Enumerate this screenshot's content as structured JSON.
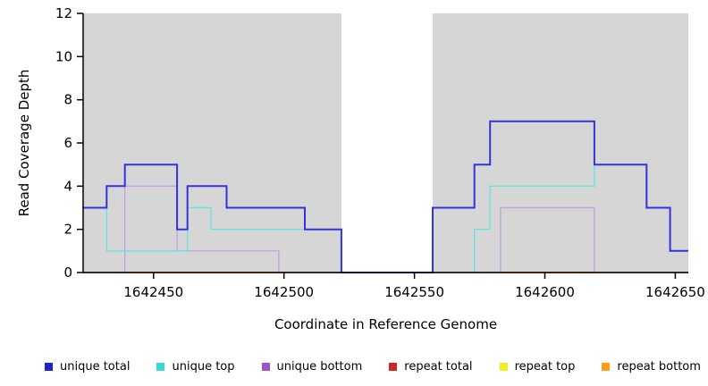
{
  "chart_data": {
    "type": "line",
    "step": true,
    "title": "",
    "xlabel": "Coordinate in Reference Genome",
    "ylabel": "Read Coverage Depth",
    "xlim": [
      1642423,
      1642655
    ],
    "ylim": [
      0,
      12
    ],
    "x_ticks": [
      1642450,
      1642500,
      1642550,
      1642600,
      1642650
    ],
    "y_ticks": [
      0,
      2,
      4,
      6,
      8,
      10,
      12
    ],
    "grid": false,
    "plot_bg": "#d6d6d6",
    "gap_region": {
      "from": 1642522,
      "to": 1642557,
      "color": "#ffffff"
    },
    "legend_position": "bottom",
    "series": [
      {
        "name": "repeat top",
        "color": "#f0ee20",
        "width": 1.4,
        "points": [
          [
            1642423,
            0
          ],
          [
            1642655,
            0
          ]
        ]
      },
      {
        "name": "repeat total",
        "color": "#cd2626",
        "width": 1.4,
        "points": [
          [
            1642423,
            0
          ],
          [
            1642655,
            0
          ]
        ]
      },
      {
        "name": "repeat bottom",
        "color": "#ff9e1b",
        "width": 1.5,
        "points": [
          [
            1642423,
            0
          ],
          [
            1642619,
            0
          ]
        ]
      },
      {
        "name": "unique bottom",
        "color": "#c5a3de",
        "width": 1.4,
        "points": [
          [
            1642423,
            0
          ],
          [
            1642439,
            4
          ],
          [
            1642459,
            1
          ],
          [
            1642498,
            0
          ],
          [
            1642583,
            3
          ],
          [
            1642619,
            0
          ],
          [
            1642655,
            0
          ]
        ]
      },
      {
        "name": "unique top",
        "color": "#6fe0e0",
        "width": 1.4,
        "points": [
          [
            1642423,
            3
          ],
          [
            1642432,
            1
          ],
          [
            1642463,
            3
          ],
          [
            1642472,
            2
          ],
          [
            1642522,
            0
          ],
          [
            1642557,
            0
          ],
          [
            1642573,
            2
          ],
          [
            1642579,
            4
          ],
          [
            1642619,
            5
          ],
          [
            1642639,
            3
          ],
          [
            1642648,
            1
          ],
          [
            1642655,
            1
          ]
        ]
      },
      {
        "name": "unique total",
        "color": "#3333dd",
        "width": 2,
        "points": [
          [
            1642423,
            3
          ],
          [
            1642432,
            4
          ],
          [
            1642439,
            5
          ],
          [
            1642459,
            2
          ],
          [
            1642463,
            4
          ],
          [
            1642478,
            3
          ],
          [
            1642508,
            2
          ],
          [
            1642522,
            0
          ],
          [
            1642557,
            3
          ],
          [
            1642573,
            5
          ],
          [
            1642579,
            7
          ],
          [
            1642619,
            5
          ],
          [
            1642639,
            3
          ],
          [
            1642648,
            1
          ],
          [
            1642655,
            1
          ]
        ]
      }
    ],
    "legend": [
      {
        "label": "unique total",
        "color": "#2222cc"
      },
      {
        "label": "unique top",
        "color": "#3cd6d6"
      },
      {
        "label": "unique bottom",
        "color": "#9a55c8"
      },
      {
        "label": "repeat total",
        "color": "#cd2626"
      },
      {
        "label": "repeat top",
        "color": "#f0ee20"
      },
      {
        "label": "repeat bottom",
        "color": "#ff9e1b"
      }
    ]
  }
}
